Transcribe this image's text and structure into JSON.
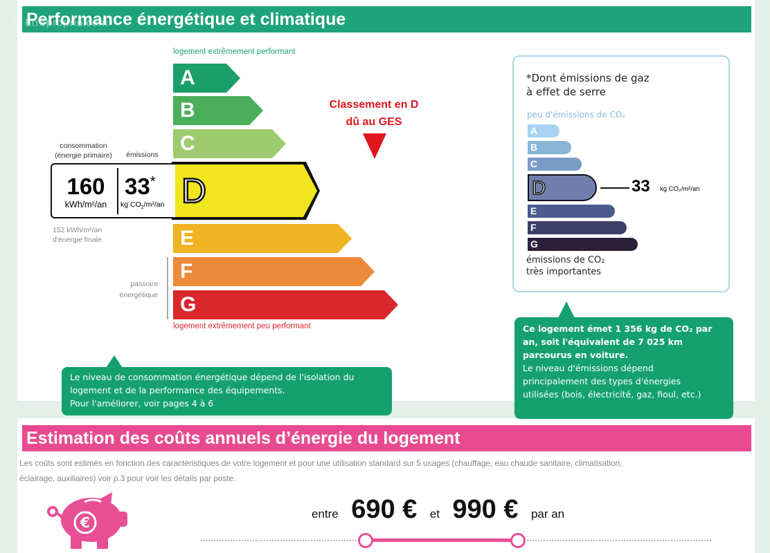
{
  "watermark": "© Etreproprio.com",
  "section1": {
    "title": "Performance énergétique et climatique",
    "color": "#1fa37a"
  },
  "scale": {
    "top_label": "logement extrêmement performant",
    "bottom_label": "logement extrêmement peu performant",
    "classes": [
      {
        "letter": "A",
        "color": "#1a9e6a"
      },
      {
        "letter": "B",
        "color": "#4bae5a"
      },
      {
        "letter": "C",
        "color": "#9dcb6e"
      },
      {
        "letter": "D",
        "color": "#f1e61d"
      },
      {
        "letter": "E",
        "color": "#f0b323"
      },
      {
        "letter": "F",
        "color": "#ec8a3a"
      },
      {
        "letter": "G",
        "color": "#d9272b"
      }
    ],
    "current_class": "D",
    "passoire_label_1": "passoire",
    "passoire_label_2": "énergétique"
  },
  "consumption": {
    "label_1": "consommation",
    "label_2": "(énergie primaire)",
    "value": "160",
    "unit": "kWh/m²/an",
    "final_1": "152 kWh/m²/an",
    "final_2": "d'énergie finale"
  },
  "emissions": {
    "label": "émissions",
    "value": "33",
    "asterisk": "*",
    "unit_pre": "kg CO",
    "unit_sub": "2",
    "unit_post": "/m²/an"
  },
  "classement": {
    "line1": "Classement en D",
    "line2": "dû au GES",
    "color": "#e0141c"
  },
  "ges": {
    "title_1": "*Dont émissions de gaz",
    "title_2": "à effet de serre",
    "top_label": "peu d'émissions de CO₂",
    "classes": [
      {
        "letter": "A",
        "color": "#a8d4ef"
      },
      {
        "letter": "B",
        "color": "#88b4d8"
      },
      {
        "letter": "C",
        "color": "#7a9cc6"
      },
      {
        "letter": "D",
        "color": "#6f7fad"
      },
      {
        "letter": "E",
        "color": "#4b5a8f"
      },
      {
        "letter": "F",
        "color": "#3c3f68"
      },
      {
        "letter": "G",
        "color": "#2a1f3a"
      }
    ],
    "value": "33",
    "unit": "kg CO₂/m²/an",
    "bottom_1": "émissions de CO₂",
    "bottom_2": "très importantes"
  },
  "callout_left": {
    "line1": "Le niveau de consommation énergétique dépend de l'isolation du",
    "line2": "logement et de la performance des équipements.",
    "line3": "Pour l'améliorer, voir pages 4 à 6"
  },
  "callout_right": {
    "bold1": "Ce logement émet 1 356 kg de CO₂ par",
    "bold2": "an, soit l'équivalent de 7 025 km",
    "bold3": "parcourus en voiture.",
    "line1": "Le niveau d'émissions dépend",
    "line2": "principalement des types d'énergies",
    "line3": "utilisées (bois, électricité, gaz, fioul, etc.)"
  },
  "section2": {
    "title": "Estimation des coûts annuels d’énergie du logement",
    "color": "#e84a8f",
    "desc1": "Les coûts sont estimés en fonction des caractéristiques de votre logement et pour une utilisation standard sur 5 usages (chauffage, eau chaude sanitaire, climatisation,",
    "desc2": "éclairage, auxiliaires) voir p.3 pour voir les détails par poste.",
    "entre": "entre",
    "min": "690 €",
    "et": "et",
    "max": "990 €",
    "par_an": "par an",
    "icon": "piggy-bank-euro-icon"
  }
}
